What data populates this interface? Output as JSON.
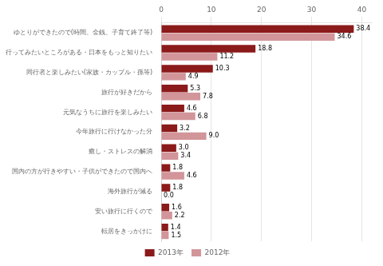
{
  "chart_data": {
    "type": "bar",
    "orientation": "horizontal",
    "categories": [
      "転居をきっかけに",
      "安い旅行に行くので",
      "海外旅行が減る",
      "国内の方が行きやすい・子供ができたので国内へ",
      "癒し・ストレスの解消",
      "今年旅行に行けなかった分",
      "元気なうちに旅行を楽しみたい",
      "旅行が好きだから",
      "同行者と楽しみたい(家族・カップル・孫等)",
      "行ってみたいところがある・日本をもっと知りたい",
      "ゆとりができたので(時間、金銭、子育て終了等)"
    ],
    "series": [
      {
        "name": "2013年",
        "color": "#8B1A1A",
        "values": [
          1.4,
          1.6,
          1.8,
          1.8,
          3.0,
          3.2,
          4.6,
          5.3,
          10.3,
          18.8,
          38.4
        ],
        "value_labels": [
          "1.4",
          "1.6",
          "1.8",
          "1.8",
          "3.0",
          "3.2",
          "4.6",
          "5.3",
          "10.3",
          "18.8",
          "38.4"
        ]
      },
      {
        "name": "2012年",
        "color": "#D2959A",
        "values": [
          1.5,
          2.2,
          0.0,
          4.6,
          3.4,
          9.0,
          6.8,
          7.8,
          4.9,
          11.2,
          34.6
        ],
        "value_labels": [
          "1.5",
          "2.2",
          "0.0",
          "4.6",
          "3.4",
          "9.0",
          "6.8",
          "7.8",
          "4.9",
          "11.2",
          "34.6"
        ]
      }
    ],
    "xlim": [
      0,
      42
    ],
    "xticks": [
      0,
      10,
      20,
      30,
      40
    ],
    "grid": true,
    "legend": "bottom",
    "data_labels": true
  }
}
